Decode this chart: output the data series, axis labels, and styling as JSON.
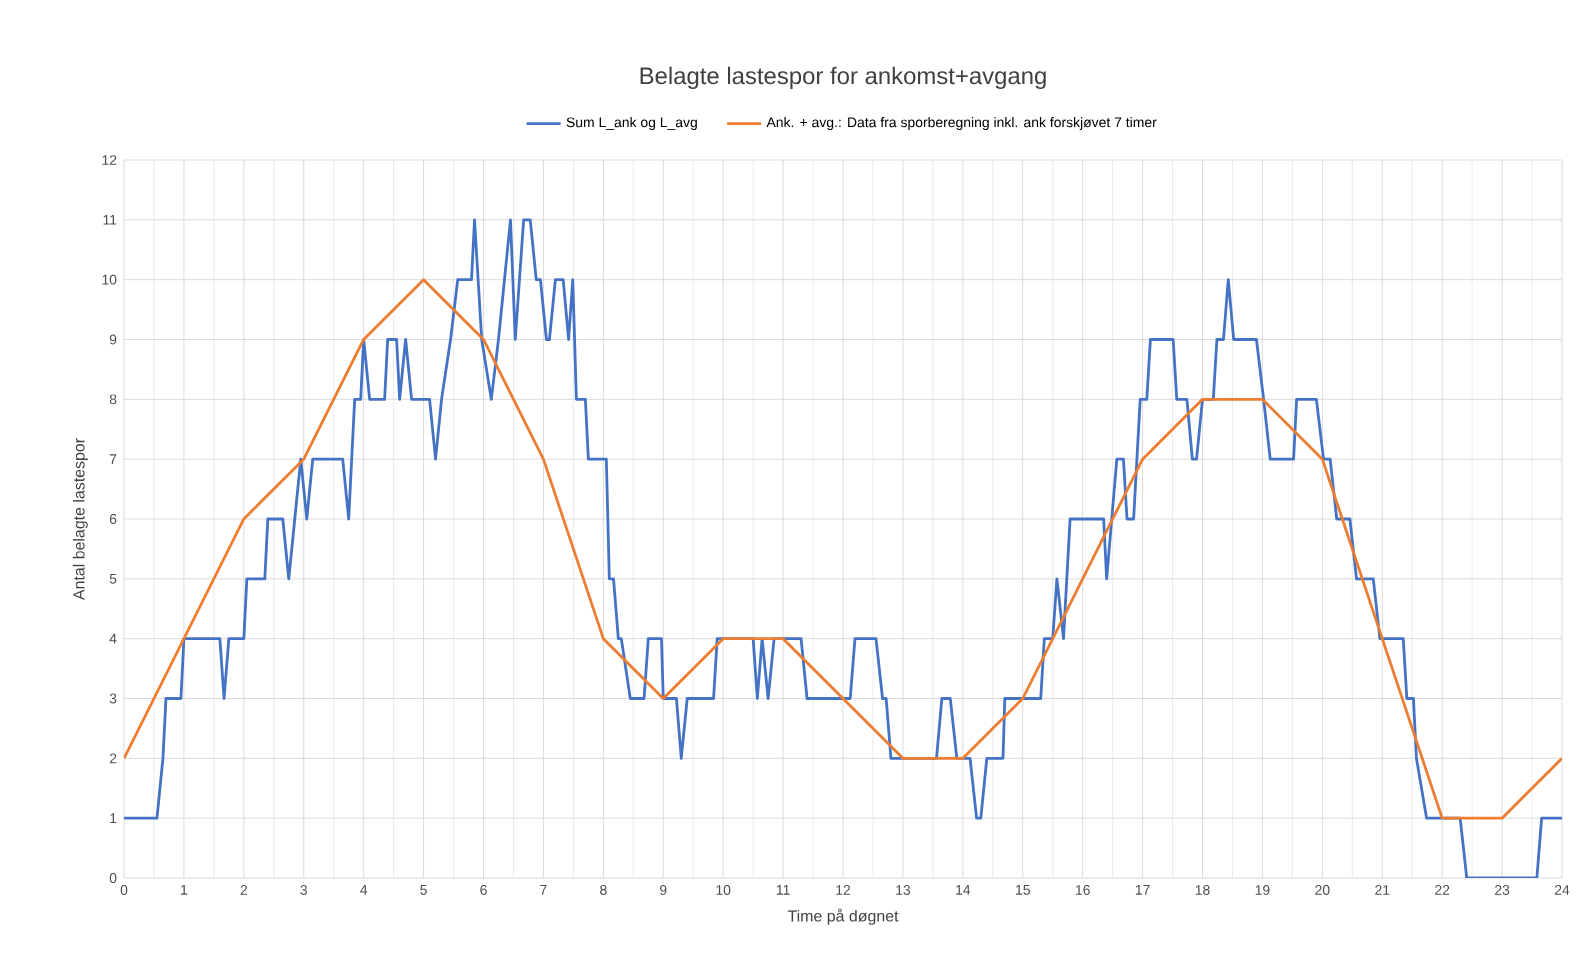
{
  "chart_data": {
    "type": "line",
    "title": "Belagte lastespor for ankomst+avgang",
    "xlabel": "Time på døgnet",
    "ylabel": "Antal belagte lastespor",
    "xlim": [
      0,
      24
    ],
    "ylim": [
      0,
      12
    ],
    "xticks": [
      0,
      1,
      2,
      3,
      4,
      5,
      6,
      7,
      8,
      9,
      10,
      11,
      12,
      13,
      14,
      15,
      16,
      17,
      18,
      19,
      20,
      21,
      22,
      23,
      24
    ],
    "yticks": [
      0,
      1,
      2,
      3,
      4,
      5,
      6,
      7,
      8,
      9,
      10,
      11,
      12
    ],
    "grid": true,
    "legend": "top",
    "marker": "none",
    "line_style": "solid",
    "series": [
      {
        "name": "Sum L_ank og L_avg",
        "color": "#4472c4",
        "x": [
          0,
          0.55,
          0.65,
          0.7,
          0.95,
          1.0,
          1.6,
          1.67,
          1.75,
          2.0,
          2.05,
          2.35,
          2.4,
          2.65,
          2.75,
          2.85,
          2.95,
          3.05,
          3.15,
          3.65,
          3.75,
          3.85,
          3.95,
          4.0,
          4.1,
          4.35,
          4.4,
          4.55,
          4.6,
          4.7,
          4.8,
          5.1,
          5.2,
          5.3,
          5.45,
          5.57,
          5.8,
          5.85,
          5.97,
          6.13,
          6.25,
          6.35,
          6.45,
          6.53,
          6.67,
          6.78,
          6.88,
          6.95,
          7.05,
          7.1,
          7.2,
          7.33,
          7.42,
          7.49,
          7.55,
          7.7,
          7.75,
          8.05,
          8.1,
          8.17,
          8.25,
          8.3,
          8.45,
          8.68,
          8.75,
          8.97,
          9.0,
          9.22,
          9.3,
          9.4,
          9.84,
          9.9,
          10.5,
          10.57,
          10.65,
          10.75,
          10.85,
          11.3,
          11.4,
          12.12,
          12.2,
          12.55,
          12.66,
          12.72,
          12.8,
          13.56,
          13.65,
          13.79,
          13.9,
          14.12,
          14.23,
          14.3,
          14.4,
          14.67,
          14.7,
          15.3,
          15.36,
          15.5,
          15.57,
          15.68,
          15.79,
          16.35,
          16.4,
          16.57,
          16.68,
          16.74,
          16.85,
          16.96,
          17.07,
          17.13,
          17.51,
          17.57,
          17.74,
          17.83,
          17.9,
          18.0,
          18.18,
          18.24,
          18.35,
          18.43,
          18.52,
          18.9,
          19.02,
          19.13,
          19.52,
          19.57,
          19.9,
          20.02,
          20.13,
          20.24,
          20.46,
          20.57,
          20.85,
          20.96,
          21.35,
          21.41,
          21.52,
          21.57,
          21.74,
          22.3,
          22.41,
          23.58,
          23.66,
          24
        ],
        "values": [
          1,
          1,
          2,
          3,
          3,
          4,
          4,
          3,
          4,
          4,
          5,
          5,
          6,
          6,
          5,
          6,
          7,
          6,
          7,
          7,
          6,
          8,
          8,
          9,
          8,
          8,
          9,
          9,
          8,
          9,
          8,
          8,
          7,
          8,
          9,
          10,
          10,
          11,
          9,
          8,
          9,
          10,
          11,
          9,
          11,
          11,
          10,
          10,
          9,
          9,
          10,
          10,
          9,
          10,
          8,
          8,
          7,
          7,
          5,
          5,
          4,
          4,
          3,
          3,
          4,
          4,
          3,
          3,
          2,
          3,
          3,
          4,
          4,
          3,
          4,
          3,
          4,
          4,
          3,
          3,
          4,
          4,
          3,
          3,
          2,
          2,
          3,
          3,
          2,
          2,
          1,
          1,
          2,
          2,
          3,
          3,
          4,
          4,
          5,
          4,
          6,
          6,
          5,
          7,
          7,
          6,
          6,
          8,
          8,
          9,
          9,
          8,
          8,
          7,
          7,
          8,
          8,
          9,
          9,
          10,
          9,
          9,
          8,
          7,
          7,
          8,
          8,
          7,
          7,
          6,
          6,
          5,
          5,
          4,
          4,
          3,
          3,
          2,
          1,
          1,
          0,
          0,
          1,
          1
        ]
      },
      {
        "name": "Ank. + avg.: Data fra sporberegning inkl. ank forskjøvet 7 timer",
        "color": "#ed7d31",
        "x": [
          0,
          1,
          2,
          3,
          4,
          5,
          6,
          7,
          8,
          9,
          10,
          11,
          12,
          13,
          14,
          15,
          16,
          17,
          18,
          19,
          20,
          21,
          22,
          23,
          24
        ],
        "values": [
          2,
          4,
          6,
          7,
          9,
          10,
          9,
          7,
          4,
          3,
          4,
          4,
          3,
          2,
          2,
          3,
          5,
          7,
          8,
          8,
          7,
          4,
          1,
          1,
          2
        ]
      }
    ]
  }
}
